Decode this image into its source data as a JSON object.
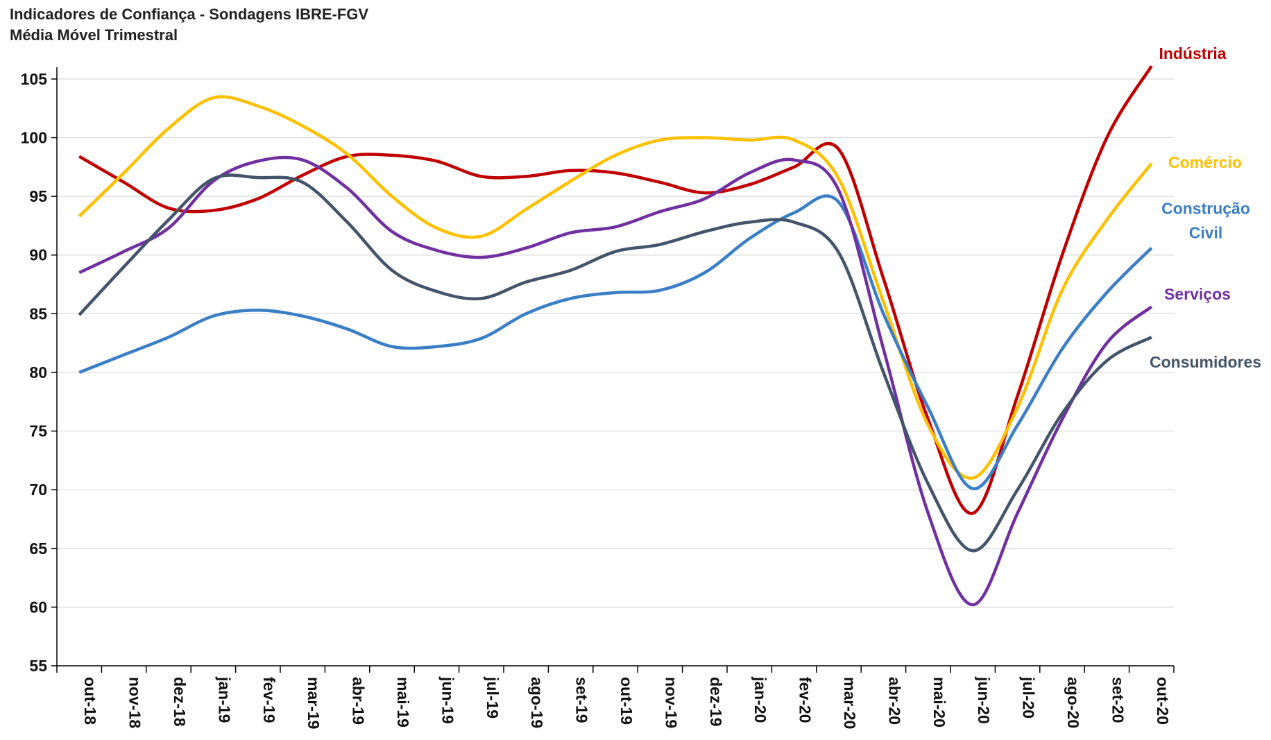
{
  "chart_data": {
    "type": "line",
    "title": "Indicadores de Confiança - Sondagens IBRE-FGV",
    "subtitle": "Média Móvel Trimestral",
    "categories": [
      "out-18",
      "nov-18",
      "dez-18",
      "jan-19",
      "fev-19",
      "mar-19",
      "abr-19",
      "mai-19",
      "jun-19",
      "jul-19",
      "ago-19",
      "set-19",
      "out-19",
      "nov-19",
      "dez-19",
      "jan-20",
      "fev-20",
      "mar-20",
      "abr-20",
      "mai-20",
      "jun-20",
      "jul-20",
      "ago-20",
      "set-20",
      "out-20"
    ],
    "series": [
      {
        "name": "Indústria",
        "color": "#c00000",
        "values": [
          98.4,
          96.2,
          94.0,
          93.8,
          94.8,
          96.8,
          98.4,
          98.5,
          98.0,
          96.7,
          96.7,
          97.2,
          97.0,
          96.2,
          95.3,
          96.0,
          97.5,
          99.0,
          88.0,
          76.0,
          68.0,
          78.0,
          90.0,
          100.0,
          106.1
        ]
      },
      {
        "name": "Comércio",
        "color": "#ffc000",
        "values": [
          93.3,
          97.0,
          100.8,
          103.4,
          102.7,
          101.0,
          98.6,
          95.0,
          92.3,
          91.6,
          93.9,
          96.3,
          98.5,
          99.8,
          100.0,
          99.8,
          99.8,
          96.5,
          86.0,
          75.5,
          71.0,
          77.0,
          87.0,
          93.0,
          97.8
        ]
      },
      {
        "name": "Construção Civil",
        "color": "#3a7ec6",
        "values": [
          80.0,
          81.5,
          83.0,
          84.8,
          85.3,
          84.8,
          83.7,
          82.2,
          82.2,
          82.9,
          85.0,
          86.3,
          86.8,
          87.0,
          88.5,
          91.4,
          93.6,
          94.5,
          85.0,
          77.0,
          70.1,
          75.5,
          82.0,
          86.8,
          90.6
        ]
      },
      {
        "name": "Serviços",
        "color": "#7030a0",
        "values": [
          88.5,
          90.3,
          92.3,
          96.3,
          98.0,
          98.1,
          95.7,
          92.0,
          90.4,
          89.8,
          90.6,
          91.9,
          92.4,
          93.7,
          94.8,
          97.0,
          98.1,
          95.5,
          82.0,
          68.0,
          60.2,
          68.0,
          76.0,
          82.5,
          85.6
        ]
      },
      {
        "name": "Consumidores",
        "color": "#44546a",
        "values": [
          84.9,
          89.0,
          93.0,
          96.5,
          96.6,
          96.2,
          92.8,
          88.7,
          86.9,
          86.3,
          87.7,
          88.7,
          90.3,
          90.9,
          92.0,
          92.8,
          92.8,
          90.2,
          80.0,
          70.5,
          64.8,
          70.0,
          76.5,
          81.0,
          83.0
        ]
      }
    ],
    "ylim": [
      55,
      106
    ],
    "yticks": [
      55,
      60,
      65,
      70,
      75,
      80,
      85,
      90,
      95,
      100,
      105
    ],
    "grid": true
  }
}
